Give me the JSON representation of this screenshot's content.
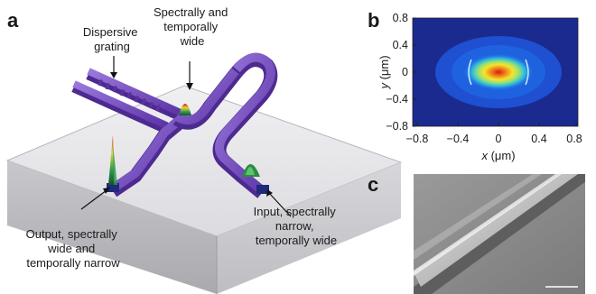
{
  "panels": {
    "a": {
      "letter": "a"
    },
    "b": {
      "letter": "b"
    },
    "c": {
      "letter": "c"
    }
  },
  "annotations": {
    "dispersive_grating": [
      "Dispersive",
      "grating"
    ],
    "spectrally_temporally_wide": [
      "Spectrally and",
      "temporally",
      "wide"
    ],
    "output": [
      "Output, spectrally",
      "wide and",
      "temporally narrow"
    ],
    "input": [
      "Input, spectrally",
      "narrow,",
      "temporally wide"
    ]
  },
  "mode_plot": {
    "x_ticks": [
      "−0.8",
      "−0.4",
      "0",
      "0.4",
      "0.8"
    ],
    "y_ticks": [
      "0.8",
      "0.4",
      "0",
      "−0.4",
      "−0.8"
    ],
    "x_label_var": "x",
    "x_label_unit": " (μm)",
    "y_label_var": "y",
    "y_label_unit": " (μm)",
    "colormap": [
      "#1b2a8f",
      "#1f54d8",
      "#27b3e6",
      "#8fe07a",
      "#f5e52a",
      "#f08a1c",
      "#d81a14"
    ]
  },
  "colors": {
    "waveguide": "#7a4fc4",
    "substrate_top": "#e7e7ea",
    "substrate_side": "#c4c4c8",
    "sem_background": "#8c8c8c"
  }
}
